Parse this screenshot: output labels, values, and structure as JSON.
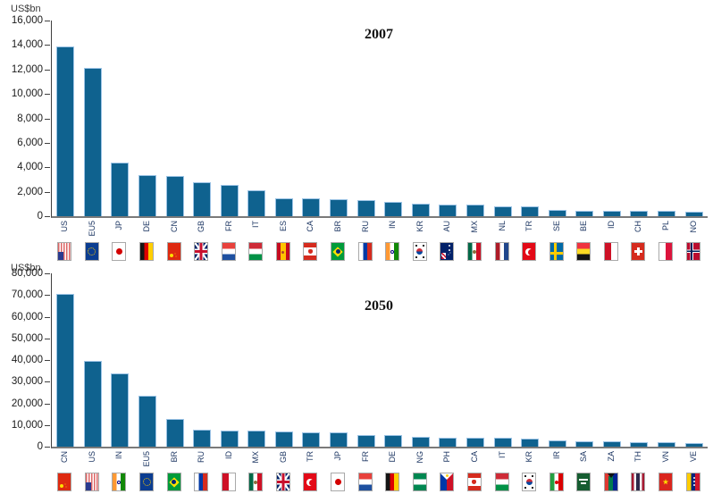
{
  "figure": {
    "unit_label": "US$bn",
    "bar_color": "#0f628f",
    "axis_color": "#404040",
    "label_color": "#1f3864"
  },
  "chart_data": [
    {
      "type": "bar",
      "title": "2007",
      "ylabel": "US$bn",
      "ylim": [
        0,
        16000
      ],
      "ytick_interval": 2000,
      "grid": false,
      "legend": false,
      "categories": [
        "US",
        "EU5",
        "JP",
        "DE",
        "CN",
        "GB",
        "FR",
        "IT",
        "ES",
        "CA",
        "BR",
        "RU",
        "IN",
        "KR",
        "AU",
        "MX",
        "NL",
        "TR",
        "SE",
        "BE",
        "ID",
        "CH",
        "PL",
        "NO"
      ],
      "values": [
        13900,
        12150,
        4400,
        3350,
        3300,
        2800,
        2550,
        2100,
        1450,
        1430,
        1370,
        1290,
        1180,
        1050,
        960,
        930,
        780,
        770,
        480,
        460,
        440,
        430,
        420,
        400
      ],
      "flags": [
        "us",
        "eu",
        "jp",
        "de",
        "cn",
        "gb",
        "fr",
        "it",
        "es",
        "ca",
        "br",
        "ru",
        "in",
        "kr",
        "au",
        "mx",
        "nl",
        "tr",
        "se",
        "be",
        "id",
        "ch",
        "pl",
        "no"
      ]
    },
    {
      "type": "bar",
      "title": "2050",
      "ylabel": "US$bn",
      "ylim": [
        0,
        80000
      ],
      "ytick_interval": 10000,
      "grid": false,
      "legend": false,
      "categories": [
        "CN",
        "US",
        "IN",
        "EU5",
        "BR",
        "RU",
        "ID",
        "MX",
        "GB",
        "TR",
        "JP",
        "FR",
        "DE",
        "NG",
        "PH",
        "CA",
        "IT",
        "KR",
        "IR",
        "SA",
        "ZA",
        "TH",
        "VN",
        "VE"
      ],
      "values": [
        70700,
        39500,
        33800,
        23500,
        12600,
        7900,
        7500,
        7300,
        6900,
        6800,
        6700,
        5400,
        5300,
        4400,
        4200,
        4100,
        4000,
        3700,
        3000,
        2400,
        2300,
        2000,
        1900,
        1800
      ],
      "flags": [
        "cn",
        "us",
        "in",
        "eu",
        "br",
        "ru",
        "id",
        "mx",
        "gb",
        "tr",
        "jp",
        "fr",
        "de",
        "ng",
        "ph",
        "ca",
        "it",
        "kr",
        "ir",
        "sa",
        "za",
        "th",
        "vn",
        "ve"
      ]
    }
  ]
}
